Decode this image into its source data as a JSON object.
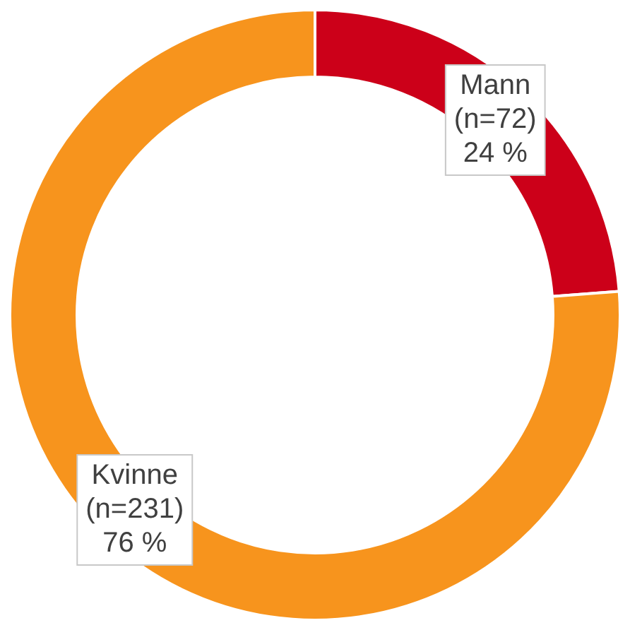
{
  "chart_data": {
    "type": "donut",
    "categories": [
      "Mann",
      "Kvinne"
    ],
    "values": [
      72,
      231
    ],
    "colors": [
      "#cc0019",
      "#f7941d"
    ],
    "value_labels": [
      "(n=72)\n24 %",
      "(n=231)\n76 %"
    ],
    "legend": false
  }
}
